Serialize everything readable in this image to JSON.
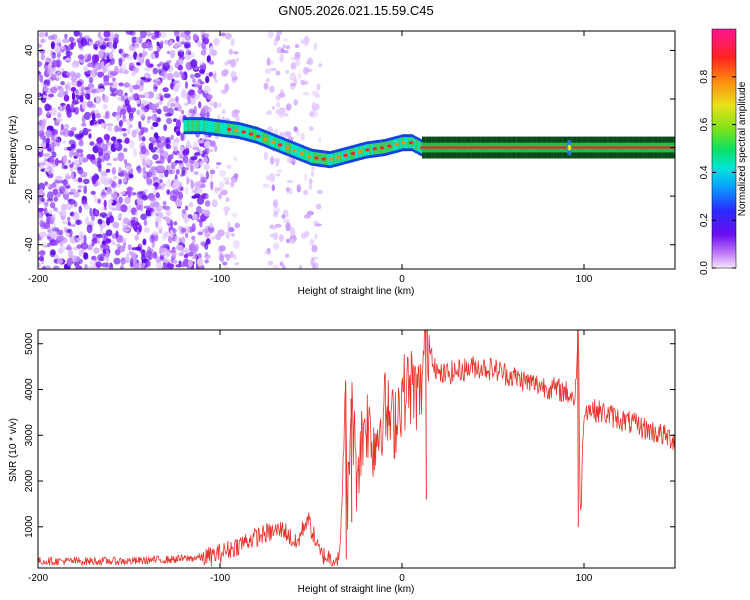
{
  "title": "GN05.2026.021.15.59.C45",
  "chart_data": [
    {
      "type": "heatmap",
      "xlabel": "Height of straight line (km)",
      "ylabel": "Frequency (Hz)",
      "xlim": [
        -200,
        150
      ],
      "ylim": [
        -50,
        48
      ],
      "x_ticks": [
        -200,
        -100,
        0,
        100
      ],
      "y_ticks": [
        -40,
        -20,
        0,
        20,
        40
      ],
      "colorbar": {
        "label": "Normalized spectral amplitude",
        "range": [
          0,
          1
        ],
        "ticks": [
          0.0,
          0.2,
          0.4,
          0.6,
          0.8
        ]
      },
      "ridge": {
        "x": [
          -120,
          -110,
          -100,
          -90,
          -80,
          -70,
          -60,
          -50,
          -40,
          -30,
          -20,
          -10,
          0,
          5,
          10,
          150
        ],
        "y": [
          9,
          9,
          8,
          7,
          5,
          2,
          -1,
          -4,
          -5,
          -3,
          -1,
          0,
          2,
          2,
          0,
          0
        ]
      },
      "grid": false
    },
    {
      "type": "line",
      "xlabel": "Height of straight line (km)",
      "ylabel": "SNR (10 * v/v)",
      "xlim": [
        -200,
        150
      ],
      "ylim": [
        100,
        5300
      ],
      "x_ticks": [
        -200,
        -100,
        0,
        100
      ],
      "y_ticks": [
        1000,
        2000,
        3000,
        4000,
        5000
      ],
      "color": "#e8322a",
      "series": [
        {
          "x": [
            -200,
            -150,
            -120,
            -105,
            -95,
            -85,
            -75,
            -65,
            -58,
            -52,
            -45,
            -38,
            -34,
            -31,
            -30,
            -28,
            -25,
            -20,
            -15,
            -10,
            -5,
            0,
            5,
            10,
            13,
            20,
            30,
            40,
            50,
            60,
            70,
            80,
            90,
            95,
            97,
            98,
            100,
            110,
            120,
            130,
            140,
            150
          ],
          "y": [
            250,
            250,
            300,
            350,
            500,
            700,
            850,
            950,
            600,
            1200,
            400,
            300,
            350,
            4100,
            1100,
            3800,
            2200,
            3400,
            2800,
            3600,
            3200,
            3900,
            4100,
            3800,
            5250,
            4300,
            4400,
            4500,
            4450,
            4300,
            4150,
            4050,
            3950,
            3800,
            5250,
            1000,
            3600,
            3500,
            3350,
            3200,
            3050,
            2900
          ]
        }
      ],
      "grid": false
    }
  ]
}
